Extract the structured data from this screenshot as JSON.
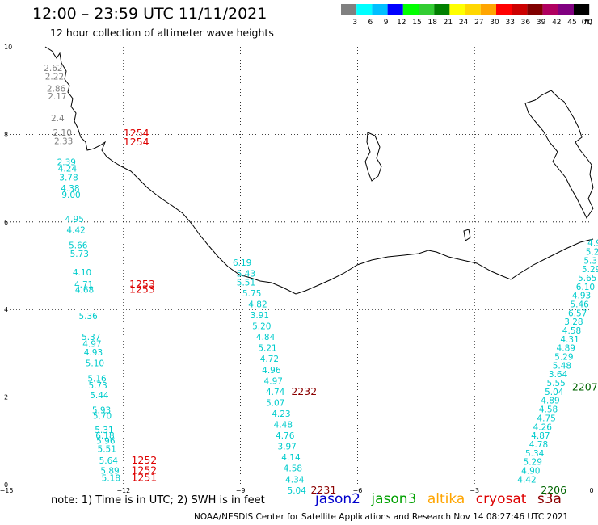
{
  "header": {
    "title": "12:00 – 23:59 UTC 11/11/2021",
    "subtitle": "12 hour collection of altimeter wave heights"
  },
  "colorbar": {
    "unit": "(ft)",
    "bins": [
      {
        "color": "#808080",
        "label": "3"
      },
      {
        "color": "#00ffff",
        "label": "6"
      },
      {
        "color": "#00bfff",
        "label": "9"
      },
      {
        "color": "#0000ff",
        "label": "12"
      },
      {
        "color": "#00ff00",
        "label": "15"
      },
      {
        "color": "#32cd32",
        "label": "18"
      },
      {
        "color": "#008000",
        "label": "21"
      },
      {
        "color": "#ffff00",
        "label": "24"
      },
      {
        "color": "#ffd700",
        "label": "27"
      },
      {
        "color": "#ffa500",
        "label": "30"
      },
      {
        "color": "#ff0000",
        "label": "33"
      },
      {
        "color": "#cc0000",
        "label": "36"
      },
      {
        "color": "#800000",
        "label": "39"
      },
      {
        "color": "#b00060",
        "label": "42"
      },
      {
        "color": "#800080",
        "label": "45"
      },
      {
        "color": "#000000",
        "label": "70"
      }
    ]
  },
  "axes": {
    "x_ticks": [
      "−15",
      "−12",
      "−9",
      "−6",
      "−3",
      "0"
    ],
    "y_ticks": [
      "0",
      "2",
      "4",
      "6",
      "8",
      "10"
    ]
  },
  "tracks": {
    "west": [
      {
        "lat": 9.45,
        "text": "2.62",
        "color": "#808080"
      },
      {
        "lat": 9.25,
        "text": "2.22",
        "color": "#808080"
      },
      {
        "lat": 8.98,
        "text": "2.86",
        "color": "#808080"
      },
      {
        "lat": 8.8,
        "text": "2.17",
        "color": "#808080"
      },
      {
        "lat": 8.3,
        "text": "2.4",
        "color": "#808080"
      },
      {
        "lat": 7.97,
        "text": "2.10",
        "color": "#808080"
      },
      {
        "lat": 7.78,
        "text": "2.33",
        "color": "#808080"
      },
      {
        "lat": 7.3,
        "text": "2.39",
        "color": "#00cccc"
      },
      {
        "lat": 7.15,
        "text": "4.24",
        "color": "#00cccc"
      },
      {
        "lat": 6.95,
        "text": "3.78",
        "color": "#00cccc"
      },
      {
        "lat": 6.7,
        "text": "4.38",
        "color": "#00cccc"
      },
      {
        "lat": 6.55,
        "text": "9.00",
        "color": "#00cccc"
      },
      {
        "lat": 6.0,
        "text": "4.95",
        "color": "#00cccc"
      },
      {
        "lat": 5.75,
        "text": "4.42",
        "color": "#00cccc"
      },
      {
        "lat": 5.4,
        "text": "5.66",
        "color": "#00cccc"
      },
      {
        "lat": 5.2,
        "text": "5.73",
        "color": "#00cccc"
      },
      {
        "lat": 4.78,
        "text": "4.10",
        "color": "#00cccc"
      },
      {
        "lat": 4.5,
        "text": "4.71",
        "color": "#00cccc"
      },
      {
        "lat": 4.38,
        "text": "4.68",
        "color": "#00cccc"
      },
      {
        "lat": 3.78,
        "text": "5.36",
        "color": "#00cccc"
      },
      {
        "lat": 3.3,
        "text": "5.37",
        "color": "#00cccc"
      },
      {
        "lat": 3.15,
        "text": "4.97",
        "color": "#00cccc"
      },
      {
        "lat": 2.95,
        "text": "4.93",
        "color": "#00cccc"
      },
      {
        "lat": 2.7,
        "text": "5.10",
        "color": "#00cccc"
      },
      {
        "lat": 2.35,
        "text": "5.16",
        "color": "#00cccc"
      },
      {
        "lat": 2.2,
        "text": "5.73",
        "color": "#00cccc"
      },
      {
        "lat": 1.97,
        "text": "5.44",
        "color": "#00cccc"
      },
      {
        "lat": 1.63,
        "text": "5.93",
        "color": "#00cccc"
      },
      {
        "lat": 1.5,
        "text": "5.70",
        "color": "#00cccc"
      },
      {
        "lat": 1.18,
        "text": "5.31",
        "color": "#00cccc"
      },
      {
        "lat": 1.05,
        "text": "6.18",
        "color": "#00cccc"
      },
      {
        "lat": 0.93,
        "text": "5.96",
        "color": "#00cccc"
      },
      {
        "lat": 0.75,
        "text": "5.51",
        "color": "#00cccc"
      },
      {
        "lat": 0.48,
        "text": "5.64",
        "color": "#00cccc"
      },
      {
        "lat": 0.25,
        "text": "5.89",
        "color": "#00cccc"
      },
      {
        "lat": 0.08,
        "text": "5.18",
        "color": "#00cccc"
      }
    ],
    "middle": [
      {
        "lon": -9.2,
        "lat": 5.0,
        "text": "6.19"
      },
      {
        "lon": -9.1,
        "lat": 4.75,
        "text": "5.43"
      },
      {
        "lon": -9.1,
        "lat": 4.55,
        "text": "5.51"
      },
      {
        "lon": -8.95,
        "lat": 4.3,
        "text": "5.75"
      },
      {
        "lon": -8.8,
        "lat": 4.05,
        "text": "4.82"
      },
      {
        "lon": -8.75,
        "lat": 3.8,
        "text": "3.91"
      },
      {
        "lon": -8.7,
        "lat": 3.55,
        "text": "5.20"
      },
      {
        "lon": -8.6,
        "lat": 3.3,
        "text": "4.84"
      },
      {
        "lon": -8.55,
        "lat": 3.05,
        "text": "5.21"
      },
      {
        "lon": -8.5,
        "lat": 2.8,
        "text": "4.72"
      },
      {
        "lon": -8.45,
        "lat": 2.55,
        "text": "4.96"
      },
      {
        "lon": -8.4,
        "lat": 2.3,
        "text": "4.97"
      },
      {
        "lon": -8.35,
        "lat": 2.05,
        "text": "4.74"
      },
      {
        "lon": -8.35,
        "lat": 1.8,
        "text": "5.07"
      },
      {
        "lon": -8.2,
        "lat": 1.55,
        "text": "4.23"
      },
      {
        "lon": -8.15,
        "lat": 1.3,
        "text": "4.48"
      },
      {
        "lon": -8.1,
        "lat": 1.05,
        "text": "4.76"
      },
      {
        "lon": -8.05,
        "lat": 0.8,
        "text": "3.97"
      },
      {
        "lon": -7.95,
        "lat": 0.55,
        "text": "4.14"
      },
      {
        "lon": -7.9,
        "lat": 0.3,
        "text": "4.58"
      },
      {
        "lon": -7.85,
        "lat": 0.05,
        "text": "4.34"
      },
      {
        "lon": -7.8,
        "lat": -0.2,
        "text": "5.04"
      }
    ],
    "east": [
      {
        "lon": -0.1,
        "lat": 5.45,
        "text": "4.9"
      },
      {
        "lon": -0.15,
        "lat": 5.25,
        "text": "5.2"
      },
      {
        "lon": -0.2,
        "lat": 5.05,
        "text": "5.3"
      },
      {
        "lon": -0.25,
        "lat": 4.85,
        "text": "5.29"
      },
      {
        "lon": -0.35,
        "lat": 4.65,
        "text": "5.65"
      },
      {
        "lon": -0.4,
        "lat": 4.45,
        "text": "6.10"
      },
      {
        "lon": -0.5,
        "lat": 4.25,
        "text": "4.93"
      },
      {
        "lon": -0.55,
        "lat": 4.05,
        "text": "5.46"
      },
      {
        "lon": -0.6,
        "lat": 3.85,
        "text": "6.57"
      },
      {
        "lon": -0.7,
        "lat": 3.65,
        "text": "3.28"
      },
      {
        "lon": -0.75,
        "lat": 3.45,
        "text": "4.58"
      },
      {
        "lon": -0.8,
        "lat": 3.25,
        "text": "4.31"
      },
      {
        "lon": -0.9,
        "lat": 3.05,
        "text": "4.89"
      },
      {
        "lon": -0.95,
        "lat": 2.85,
        "text": "5.29"
      },
      {
        "lon": -1.0,
        "lat": 2.65,
        "text": "5.48"
      },
      {
        "lon": -1.1,
        "lat": 2.45,
        "text": "3.64"
      },
      {
        "lon": -1.15,
        "lat": 2.25,
        "text": "5.55"
      },
      {
        "lon": -1.2,
        "lat": 2.05,
        "text": "5.04"
      },
      {
        "lon": -1.3,
        "lat": 1.85,
        "text": "4.89"
      },
      {
        "lon": -1.35,
        "lat": 1.65,
        "text": "4.58"
      },
      {
        "lon": -1.4,
        "lat": 1.45,
        "text": "4.75"
      },
      {
        "lon": -1.5,
        "lat": 1.25,
        "text": "4.26"
      },
      {
        "lon": -1.55,
        "lat": 1.05,
        "text": "4.87"
      },
      {
        "lon": -1.6,
        "lat": 0.85,
        "text": "4.78"
      },
      {
        "lon": -1.7,
        "lat": 0.65,
        "text": "5.34"
      },
      {
        "lon": -1.75,
        "lat": 0.45,
        "text": "5.29"
      },
      {
        "lon": -1.8,
        "lat": 0.25,
        "text": "4.90"
      },
      {
        "lon": -1.9,
        "lat": 0.05,
        "text": "4.42"
      }
    ]
  },
  "time_labels": [
    {
      "lon": -12.0,
      "lat": 7.95,
      "text": "1254",
      "color": "#dd0000"
    },
    {
      "lon": -12.0,
      "lat": 7.75,
      "text": "1254",
      "color": "#dd0000"
    },
    {
      "lon": -11.85,
      "lat": 4.5,
      "text": "1253",
      "color": "#dd0000"
    },
    {
      "lon": -11.85,
      "lat": 4.38,
      "text": "1253",
      "color": "#dd0000"
    },
    {
      "lon": -11.8,
      "lat": 0.48,
      "text": "1252",
      "color": "#dd0000"
    },
    {
      "lon": -11.8,
      "lat": 0.25,
      "text": "1252",
      "color": "#dd0000"
    },
    {
      "lon": -11.8,
      "lat": 0.08,
      "text": "1251",
      "color": "#dd0000"
    },
    {
      "lon": -7.7,
      "lat": 2.05,
      "text": "2232",
      "color": "#8b0000"
    },
    {
      "lon": -7.2,
      "lat": -0.2,
      "text": "2231",
      "color": "#8b0000"
    },
    {
      "lon": -0.5,
      "lat": 2.15,
      "text": "2207",
      "color": "#006400"
    },
    {
      "lon": -1.3,
      "lat": -0.2,
      "text": "2206",
      "color": "#006400"
    }
  ],
  "legend": {
    "note": "note:  1) Time is in UTC;  2) SWH is in feet",
    "satellites": [
      {
        "name": "jason2",
        "color": "#0000cc"
      },
      {
        "name": "jason3",
        "color": "#00a000"
      },
      {
        "name": "altika",
        "color": "#ffa500"
      },
      {
        "name": "cryosat",
        "color": "#dd0000"
      },
      {
        "name": "s3a",
        "color": "#8b0000"
      }
    ]
  },
  "footer": {
    "credit": "NOAA/NESDIS Center for Satellite Applications and Research    Nov 14 08:27:46 UTC 2021"
  }
}
